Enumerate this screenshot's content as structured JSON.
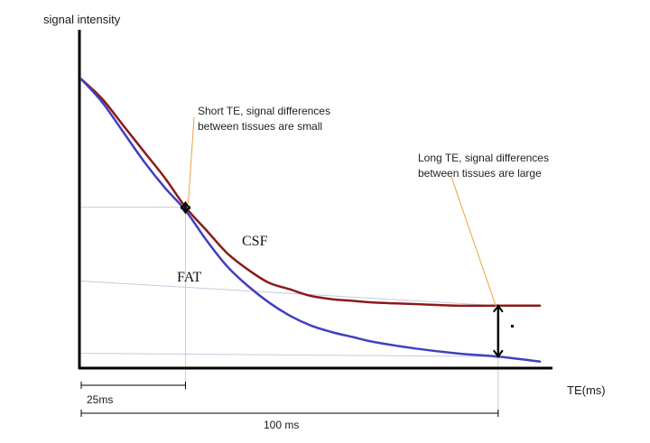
{
  "chart_data": {
    "type": "line",
    "ylabel": "signal intensity",
    "xlabel": "TE(ms)",
    "x_unit": "ms",
    "xlim": [
      0,
      110
    ],
    "ylim": [
      0,
      1
    ],
    "series": [
      {
        "name": "CSF",
        "color": "#8b1a1a",
        "x": [
          0,
          5,
          10,
          15,
          20,
          25,
          30,
          35,
          40,
          45,
          50,
          55,
          60,
          65,
          70,
          80,
          90,
          100,
          110
        ],
        "y": [
          0.88,
          0.82,
          0.74,
          0.66,
          0.58,
          0.49,
          0.42,
          0.35,
          0.3,
          0.26,
          0.24,
          0.22,
          0.21,
          0.205,
          0.2,
          0.195,
          0.19,
          0.19,
          0.19
        ]
      },
      {
        "name": "FAT",
        "color": "#4040c0",
        "x": [
          0,
          5,
          10,
          15,
          20,
          25,
          30,
          35,
          40,
          45,
          50,
          55,
          60,
          65,
          70,
          80,
          90,
          100,
          110
        ],
        "y": [
          0.88,
          0.81,
          0.72,
          0.63,
          0.55,
          0.48,
          0.39,
          0.31,
          0.25,
          0.2,
          0.16,
          0.13,
          0.11,
          0.095,
          0.08,
          0.06,
          0.045,
          0.035,
          0.02
        ]
      }
    ],
    "markers": [
      {
        "x": 25,
        "label": "25ms"
      },
      {
        "x": 100,
        "label": "100 ms"
      }
    ],
    "annotations": {
      "short_te": [
        "Short TE, signal differences",
        "between tissues are small"
      ],
      "long_te": [
        "Long TE, signal differences",
        "between tissues are large"
      ]
    },
    "marker_dot": "."
  }
}
